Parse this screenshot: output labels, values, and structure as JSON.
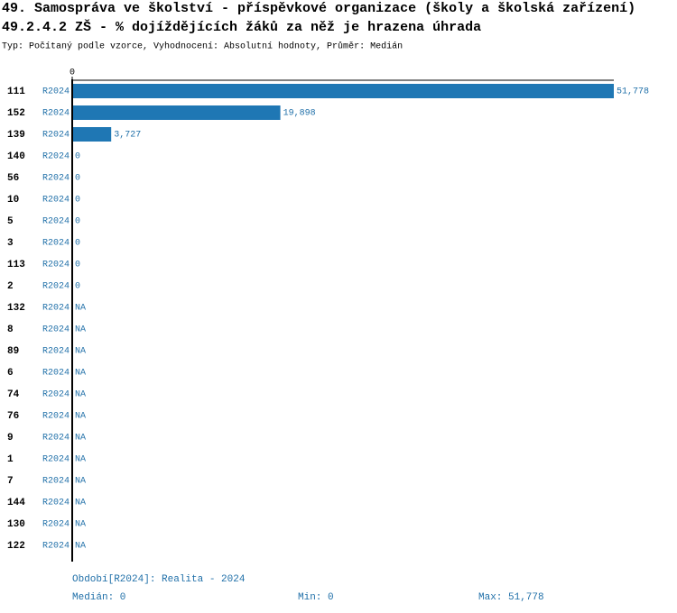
{
  "chart_data": {
    "type": "bar",
    "orientation": "horizontal",
    "title": "49. Samospráva ve školství - příspěvkové organizace (školy a školská zařízení)",
    "subtitle": "49.2.4.2 ZŠ - % dojíždějících žáků za něž je hrazena úhrada",
    "description": "Typ: Počítaný podle vzorce, Vyhodnocení: Absolutní hodnoty, Průměr: Medián",
    "categories": [
      "111",
      "152",
      "139",
      "140",
      "56",
      "10",
      "5",
      "3",
      "113",
      "2",
      "132",
      "8",
      "89",
      "6",
      "74",
      "76",
      "9",
      "1",
      "7",
      "144",
      "130",
      "122"
    ],
    "series": [
      {
        "name": "R2024",
        "color": "#1f77b4",
        "values": [
          51778,
          19898,
          3727,
          0,
          0,
          0,
          0,
          0,
          0,
          0,
          null,
          null,
          null,
          null,
          null,
          null,
          null,
          null,
          null,
          null,
          null,
          null
        ],
        "value_labels": [
          "51,778",
          "19,898",
          "3,727",
          "0",
          "0",
          "0",
          "0",
          "0",
          "0",
          "0",
          "NA",
          "NA",
          "NA",
          "NA",
          "NA",
          "NA",
          "NA",
          "NA",
          "NA",
          "NA",
          "NA",
          "NA"
        ]
      }
    ],
    "xlim": [
      0,
      51778
    ],
    "xticks": [
      0
    ],
    "footer": {
      "period": "Období[R2024]: Realita - 2024",
      "median": "Medián: 0",
      "min": "Min: 0",
      "max": "Max: 51,778"
    }
  }
}
